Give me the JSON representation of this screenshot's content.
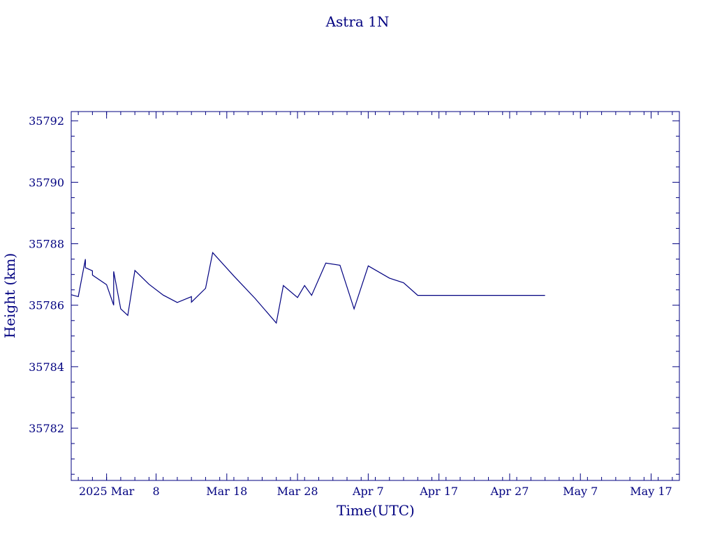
{
  "chart_data": {
    "type": "line",
    "title": "Astra 1N",
    "xlabel": "Time(UTC)",
    "ylabel": "Height (km)",
    "color": "#000080",
    "xlim": [
      "2025-02-24",
      "2025-05-21"
    ],
    "ylim": [
      35780.3,
      35792.3
    ],
    "y_ticks": [
      35782,
      35784,
      35786,
      35788,
      35790,
      35792
    ],
    "y_tick_labels": [
      "35782",
      "35784",
      "35786",
      "35788",
      "35790",
      "35792"
    ],
    "x_ticks": [
      "2025-03-01",
      "2025-03-08",
      "2025-03-18",
      "2025-03-28",
      "2025-04-07",
      "2025-04-17",
      "2025-04-27",
      "2025-05-07",
      "2025-05-17"
    ],
    "x_tick_labels": [
      "2025 Mar",
      "8",
      "Mar 18",
      "Mar 28",
      "Apr  7",
      "Apr 17",
      "Apr 27",
      "May  7",
      "May 17"
    ],
    "grid": false,
    "series": [
      {
        "x": [
          "2025-02-24",
          "2025-02-25",
          "2025-02-26",
          "2025-02-26",
          "2025-02-27",
          "2025-02-27",
          "2025-03-01",
          "2025-03-02",
          "2025-03-02",
          "2025-03-03",
          "2025-03-04",
          "2025-03-05",
          "2025-03-07",
          "2025-03-09",
          "2025-03-11",
          "2025-03-13",
          "2025-03-13",
          "2025-03-15",
          "2025-03-16",
          "2025-03-19",
          "2025-03-22",
          "2025-03-25",
          "2025-03-26",
          "2025-03-28",
          "2025-03-29",
          "2025-03-30",
          "2025-04-01",
          "2025-04-03",
          "2025-04-05",
          "2025-04-07",
          "2025-04-10",
          "2025-04-12",
          "2025-04-14",
          "2025-04-17",
          "2025-04-20",
          "2025-04-21",
          "2025-04-23",
          "2025-04-24",
          "2025-04-26",
          "2025-04-28",
          "2025-04-30",
          "2025-05-02"
        ],
        "y": [
          35786.34,
          35786.28,
          35787.5,
          35787.22,
          35787.12,
          35786.98,
          35786.67,
          35786.0,
          35787.1,
          35785.88,
          35785.67,
          35787.13,
          35786.68,
          35786.33,
          35786.09,
          35786.28,
          35786.1,
          35786.55,
          35787.71,
          35786.95,
          35786.22,
          35785.42,
          35786.64,
          35786.25,
          35786.64,
          35786.32,
          35787.37,
          35787.3,
          35785.88,
          35787.28,
          35786.88,
          35786.73,
          35786.32,
          35786.32,
          35786.32,
          35786.32,
          35786.32,
          35786.32,
          35786.32,
          35786.32,
          35786.32,
          35786.32
        ]
      }
    ]
  }
}
